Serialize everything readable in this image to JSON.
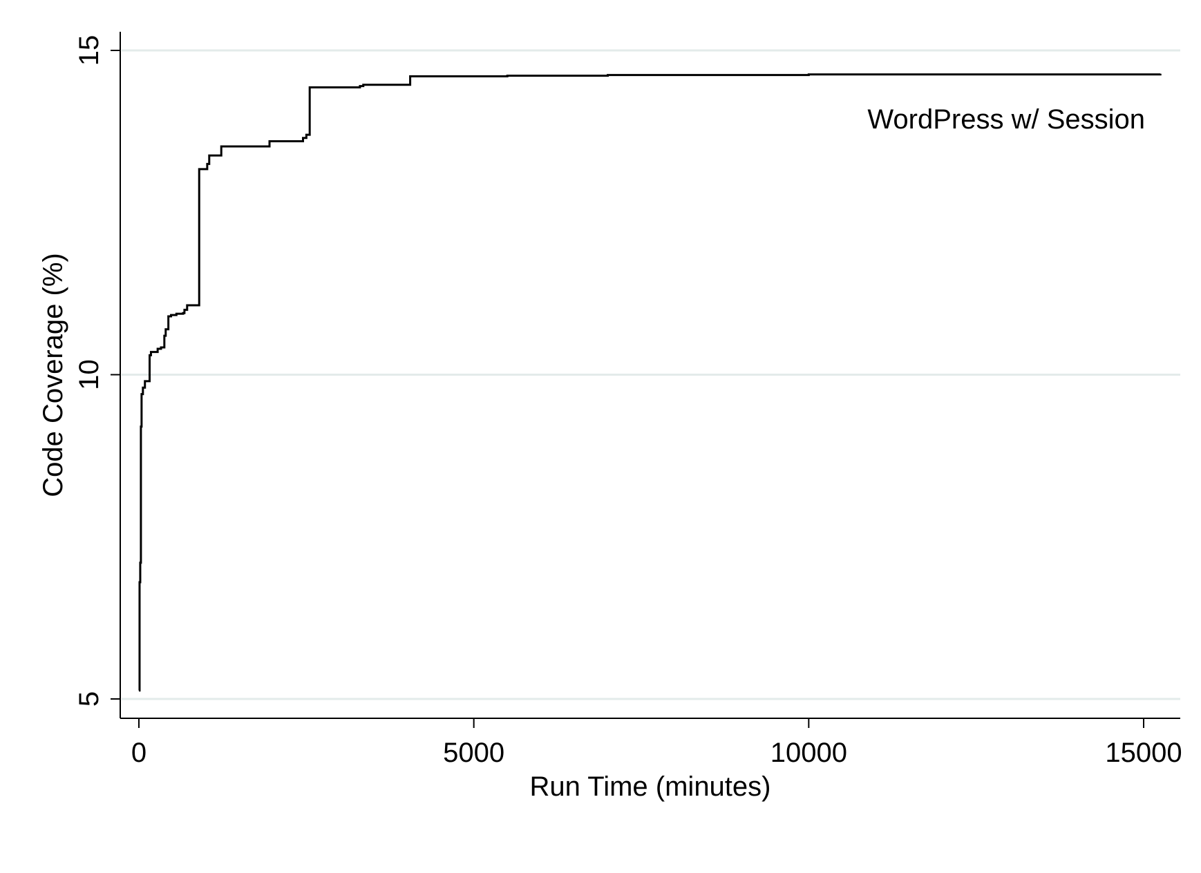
{
  "chart_data": {
    "type": "line",
    "title": "",
    "xlabel": "Run Time (minutes)",
    "ylabel": "Code Coverage (%)",
    "xlim": [
      0,
      15000
    ],
    "ylim": [
      5,
      15
    ],
    "xticks": [
      0,
      5000,
      10000,
      15000
    ],
    "yticks": [
      5,
      10,
      15
    ],
    "xtick_labels": [
      "0",
      "5000",
      "10000",
      "15000"
    ],
    "ytick_labels": [
      "5",
      "10",
      "15"
    ],
    "grid": "horizontal",
    "legend": "none",
    "annotation": "WordPress w/ Session",
    "line_color": "#000000",
    "grid_color": "#e3ebea",
    "series": [
      {
        "step": "post",
        "x": [
          0,
          10,
          20,
          30,
          40,
          60,
          90,
          120,
          160,
          180,
          280,
          330,
          380,
          400,
          440,
          480,
          560,
          660,
          680,
          720,
          880,
          900,
          1000,
          1020,
          1050,
          1080,
          1230,
          1930,
          1950,
          2410,
          2450,
          2500,
          2530,
          2550,
          3300,
          3350,
          4000,
          4050,
          5500,
          7000,
          10000,
          15250
        ],
        "y": [
          5.13,
          6.8,
          7.1,
          9.2,
          9.7,
          9.8,
          9.9,
          9.9,
          10.3,
          10.35,
          10.4,
          10.42,
          10.6,
          10.7,
          10.9,
          10.92,
          10.94,
          10.95,
          11.0,
          11.07,
          11.07,
          13.17,
          13.17,
          13.25,
          13.38,
          13.38,
          13.52,
          13.52,
          13.6,
          13.6,
          13.65,
          13.7,
          13.7,
          14.43,
          14.45,
          14.47,
          14.47,
          14.6,
          14.61,
          14.62,
          14.63,
          14.64
        ]
      }
    ]
  }
}
